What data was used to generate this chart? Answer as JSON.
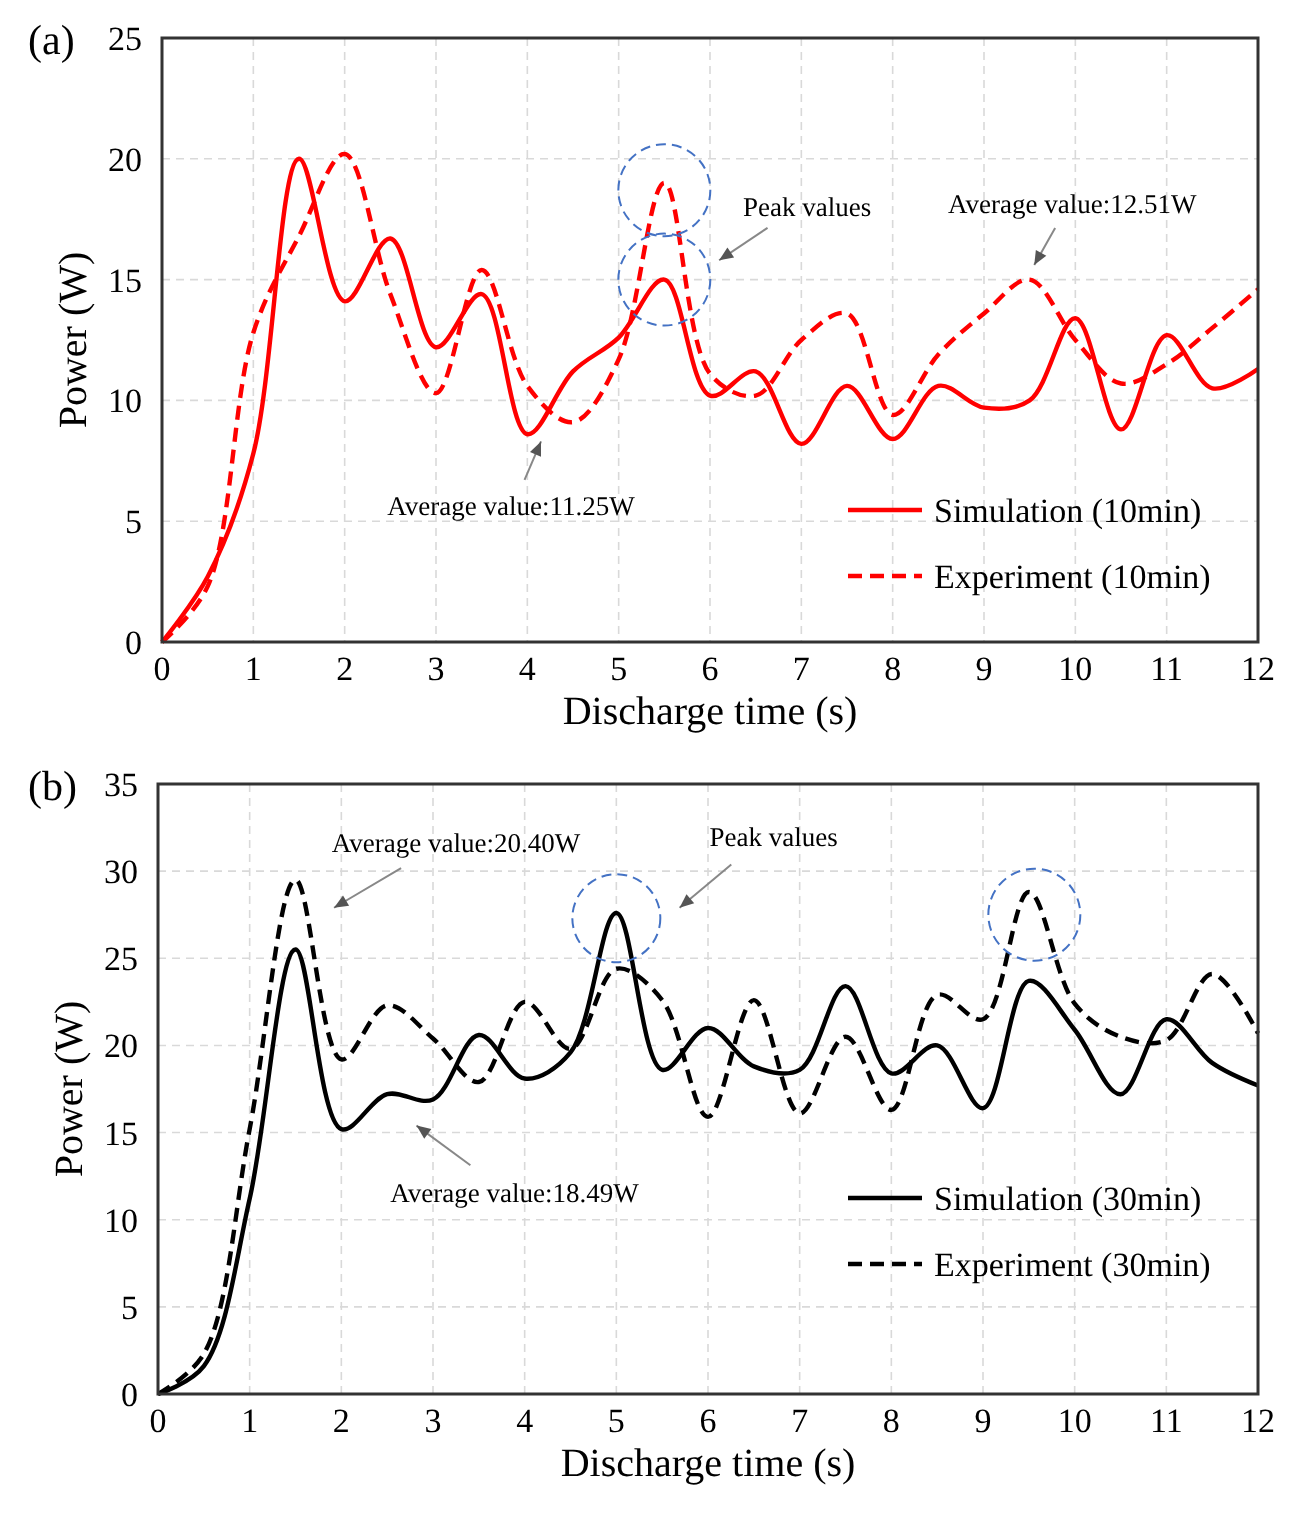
{
  "chart_data": [
    {
      "type": "line",
      "title": "(a)",
      "xlabel": "Discharge time (s)",
      "ylabel": "Power (W)",
      "x": [
        0,
        0.5,
        1,
        1.5,
        2,
        2.5,
        3,
        3.5,
        4,
        4.5,
        5,
        5.5,
        6,
        6.5,
        7,
        7.5,
        8,
        8.5,
        9,
        9.5,
        10,
        10.5,
        11,
        11.5,
        12
      ],
      "series": [
        {
          "name": "Simulation (10min)",
          "color": "#ff0000",
          "line_style": "solid",
          "values": [
            0,
            2.7,
            7.8,
            20,
            14.1,
            16.7,
            12.2,
            14.4,
            8.6,
            11.2,
            12.6,
            15,
            10.2,
            11.2,
            8.2,
            10.6,
            8.4,
            10.6,
            9.7,
            10,
            13.4,
            8.8,
            12.7,
            10.5,
            11.3
          ]
        },
        {
          "name": "Experiment (10min)",
          "color": "#ff0000",
          "line_style": "dashed",
          "values": [
            0,
            2.3,
            12.8,
            16.8,
            20.2,
            14.4,
            10.3,
            15.4,
            10.6,
            9.1,
            11.7,
            19,
            11.1,
            10.2,
            12.5,
            13.6,
            9.4,
            11.9,
            13.6,
            15,
            12.5,
            10.7,
            11.5,
            13,
            14.6
          ]
        }
      ],
      "xlim": [
        0,
        12
      ],
      "xticks": [
        0,
        1,
        2,
        3,
        4,
        5,
        6,
        7,
        8,
        9,
        10,
        11,
        12
      ],
      "ylim": [
        0,
        25
      ],
      "yticks": [
        0,
        5,
        10,
        15,
        20,
        25
      ],
      "grid": true,
      "legend": "bottom right",
      "annotations": [
        "Average value:11.25W",
        "Peak values",
        "Average value:12.51W"
      ]
    },
    {
      "type": "line",
      "title": "(b)",
      "xlabel": "Discharge time (s)",
      "ylabel": "Power (W)",
      "x": [
        0,
        0.5,
        1,
        1.5,
        2,
        2.5,
        3,
        3.5,
        4,
        4.5,
        5,
        5.5,
        6,
        6.5,
        7,
        7.5,
        8,
        8.5,
        9,
        9.5,
        10,
        10.5,
        11,
        11.5,
        12
      ],
      "series": [
        {
          "name": "Simulation (30min)",
          "color": "#000000",
          "line_style": "solid",
          "values": [
            0,
            1.6,
            11.2,
            25.5,
            15.2,
            17.2,
            16.9,
            20.6,
            18.1,
            19.6,
            27.6,
            18.6,
            21,
            18.8,
            18.6,
            23.4,
            18.4,
            20,
            16.4,
            23.7,
            20.9,
            17.2,
            21.5,
            19,
            17.7
          ]
        },
        {
          "name": "Experiment (30min)",
          "color": "#000000",
          "line_style": "dashed",
          "values": [
            0,
            2.3,
            15.2,
            29.5,
            19.2,
            22.3,
            20.4,
            17.9,
            22.5,
            19.8,
            24.4,
            22.6,
            15.9,
            22.6,
            16.1,
            20.5,
            16.3,
            22.9,
            21.5,
            28.8,
            22.4,
            20.5,
            20.3,
            24.1,
            20.7
          ]
        }
      ],
      "xlim": [
        0,
        12
      ],
      "xticks": [
        0,
        1,
        2,
        3,
        4,
        5,
        6,
        7,
        8,
        9,
        10,
        11,
        12
      ],
      "ylim": [
        0,
        35
      ],
      "yticks": [
        0,
        5,
        10,
        15,
        20,
        25,
        30,
        35
      ],
      "grid": true,
      "legend": "bottom right",
      "annotations": [
        "Average value:20.40W",
        "Average value:18.49W",
        "Peak values"
      ]
    }
  ]
}
